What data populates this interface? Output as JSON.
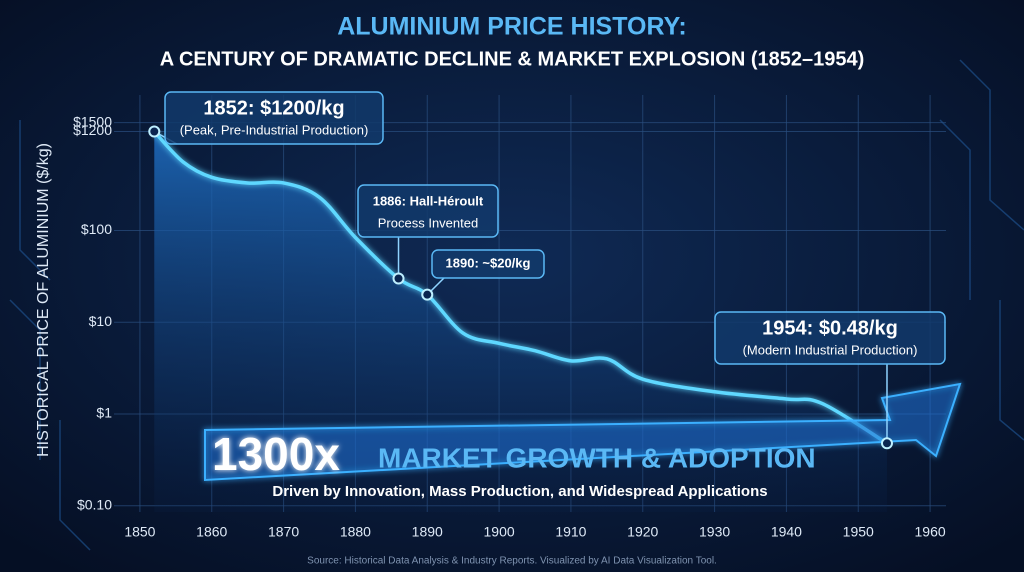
{
  "chart_data": {
    "type": "area",
    "title": "ALUMINIUM PRICE HISTORY:",
    "subtitle": "A CENTURY OF DRAMATIC DECLINE & MARKET EXPLOSION (1852–1954)",
    "y_label": "HISTORICAL PRICE OF ALUMINIUM ($/kg)",
    "x": [
      1852,
      1856,
      1860,
      1865,
      1870,
      1875,
      1880,
      1886,
      1890,
      1895,
      1900,
      1905,
      1910,
      1915,
      1920,
      1930,
      1940,
      1945,
      1954
    ],
    "values": [
      1200,
      560,
      380,
      330,
      330,
      230,
      84,
      30,
      20,
      7.6,
      5.9,
      4.9,
      3.8,
      4.0,
      2.4,
      1.75,
      1.46,
      1.3,
      0.48
    ],
    "color": "#5fd8ff",
    "xlim": [
      1845,
      1965
    ],
    "xticks": [
      1850,
      1860,
      1870,
      1880,
      1890,
      1900,
      1910,
      1920,
      1930,
      1940,
      1950,
      1960
    ],
    "ylim": [
      0.07,
      3000
    ],
    "yticks": [
      {
        "value": 0.1,
        "label": "$0.10"
      },
      {
        "value": 1,
        "label": "$1"
      },
      {
        "value": 10,
        "label": "$10"
      },
      {
        "value": 100,
        "label": "$100"
      },
      {
        "value": 1200,
        "label": "$1200"
      },
      {
        "value": 1500,
        "label": "$1500"
      }
    ],
    "log_scale": true,
    "grid": true,
    "annotations": [
      {
        "lines": [
          "1852: $1200/kg",
          "(Peak, Pre-Industrial Production)"
        ]
      },
      {
        "lines": [
          "1886: Hall-Héroult",
          "Process Invented"
        ]
      },
      {
        "lines": [
          "1890: ~$20/kg"
        ]
      },
      {
        "lines": [
          "1954: $0.48/kg",
          "(Modern Industrial Production)"
        ]
      }
    ],
    "highlight": {
      "big": "1300x",
      "headline": "MARKET GROWTH & ADOPTION",
      "caption": "Driven by Innovation, Mass Production, and Widespread Applications"
    },
    "source": "Source: Historical Data Analysis & Industry Reports. Visualized by AI Data Visualization Tool."
  }
}
